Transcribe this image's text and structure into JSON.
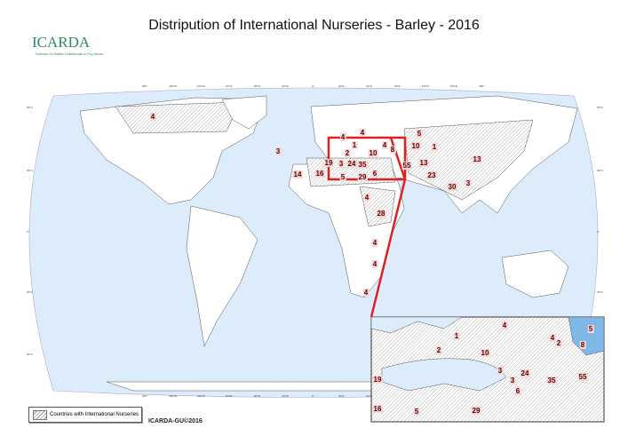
{
  "title": "Distripution of International Nurseries - Barley - 2016",
  "logo": {
    "name": "ICARDA",
    "tagline": "Science for Better Livelihoods in Dry Areas"
  },
  "legend": {
    "label": "Countries with International Nurseries",
    "pattern": "diagonal-hatch"
  },
  "credit": "ICARDA-GU©2016",
  "longitude_ticks": [
    "180°",
    "150°W",
    "120°W",
    "90°W",
    "60°W",
    "30°W",
    "0°",
    "30°E",
    "60°E",
    "90°E",
    "120°E",
    "150°E",
    "180°"
  ],
  "latitude_ticks": [
    "60°N",
    "30°N",
    "0°",
    "30°S",
    "60°S"
  ],
  "colors": {
    "sea": "#dcecfb",
    "land": "#ffffff",
    "highlight": "#e02020",
    "label_bg": "#f7d6d6",
    "label_text": "#5a0000",
    "brand": "#2e8b57"
  },
  "main_map_counts": [
    4,
    3,
    14,
    16,
    19,
    4,
    4,
    1,
    2,
    10,
    4,
    8,
    3,
    24,
    35,
    6,
    5,
    29,
    55,
    5,
    10,
    1,
    13,
    23,
    30,
    3,
    13,
    4,
    28,
    4,
    4,
    4
  ],
  "inset_counts": [
    4,
    5,
    1,
    4,
    2,
    8,
    2,
    10,
    3,
    3,
    24,
    35,
    55,
    6,
    19,
    16,
    5,
    29
  ]
}
